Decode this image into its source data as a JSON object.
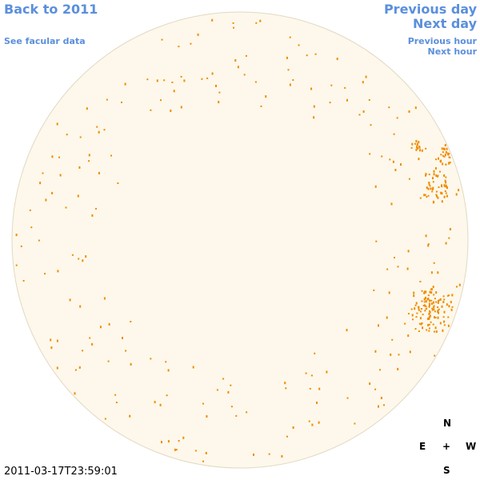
{
  "links": {
    "back": "Back to 2011",
    "facular": "See facular data",
    "previous_day": "Previous day",
    "next_day": "Next day",
    "previous_hour": "Previous hour",
    "next_hour": "Next hour"
  },
  "timestamp": "2011-03-17T23:59:01",
  "compass": {
    "north": "N",
    "east": "E",
    "center": "+",
    "west": "W",
    "south": "S"
  }
}
